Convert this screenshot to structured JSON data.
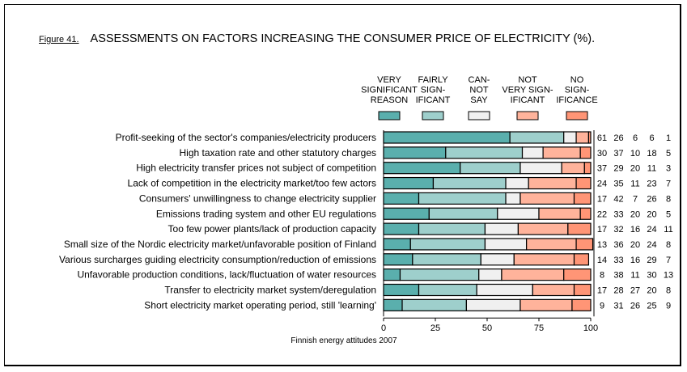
{
  "chart_data": {
    "type": "bar",
    "orientation": "horizontal",
    "stacked": true,
    "figure_number": "Figure 41.",
    "title": "ASSESSMENTS ON FACTORS INCREASING THE CONSUMER PRICE OF ELECTRICITY (%).",
    "source": "Finnish energy attitudes 2007",
    "xlabel": "",
    "ylabel": "",
    "xlim": [
      0,
      100
    ],
    "x_ticks": [
      "0",
      "25",
      "50",
      "75",
      "100"
    ],
    "legend_position": "top-right",
    "categories": [
      "Profit-seeking of the sector's companies/electricity producers",
      "High taxation rate and other statutory charges",
      "High electricity transfer prices not subject of competition",
      "Lack of competition in the electricity market/too few actors",
      "Consumers' unwillingness to change electricity supplier",
      "Emissions trading system and other EU regulations",
      "Too few power plants/lack of production capacity",
      "Small size of the Nordic electricity market/unfavorable position of Finland",
      "Various surcharges guiding electricity consumption/reduction of emissions",
      "Unfavorable production conditions, lack/fluctuation of water resources",
      "Transfer to electricity market system/deregulation",
      "Short electricity market operating period, still 'learning'"
    ],
    "series": [
      {
        "name": "VERY SIGNIFICANT REASON",
        "legend_lines": [
          "VERY",
          "SIGNIFICANT",
          "REASON"
        ],
        "color": "#5aafad",
        "values": [
          61,
          30,
          37,
          24,
          17,
          22,
          17,
          13,
          14,
          8,
          17,
          9
        ]
      },
      {
        "name": "FAIRLY SIGNIFICANT",
        "legend_lines": [
          "FAIRLY",
          "SIGN-",
          "IFICANT"
        ],
        "color": "#9ecfcc",
        "values": [
          26,
          37,
          29,
          35,
          42,
          33,
          32,
          36,
          33,
          38,
          28,
          31
        ]
      },
      {
        "name": "CANNOT SAY",
        "legend_lines": [
          "CAN-",
          "NOT",
          "SAY"
        ],
        "color": "#f0f0f0",
        "values": [
          6,
          10,
          20,
          11,
          7,
          20,
          16,
          20,
          16,
          11,
          27,
          26
        ]
      },
      {
        "name": "NOT VERY SIGNIFICANT",
        "legend_lines": [
          "NOT",
          "VERY SIGN-",
          "IFICANT"
        ],
        "color": "#ffb39b",
        "values": [
          6,
          18,
          11,
          23,
          26,
          20,
          24,
          24,
          29,
          30,
          20,
          25
        ]
      },
      {
        "name": "NO SIGNIFICANCE",
        "legend_lines": [
          "NO",
          "SIGN-",
          "IFICANCE"
        ],
        "color": "#ff9576",
        "values": [
          1,
          5,
          3,
          7,
          8,
          5,
          11,
          8,
          7,
          13,
          8,
          9
        ]
      }
    ]
  }
}
